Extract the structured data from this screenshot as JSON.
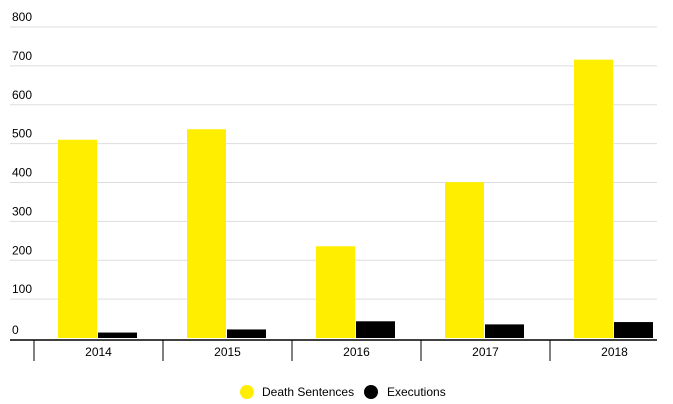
{
  "chart_data": {
    "type": "bar",
    "categories": [
      "2014",
      "2015",
      "2016",
      "2017",
      "2018"
    ],
    "series": [
      {
        "name": "Death Sentences",
        "values": [
          510,
          537,
          236,
          401,
          716
        ],
        "color": "#FFEE00"
      },
      {
        "name": "Executions",
        "values": [
          14,
          22,
          43,
          35,
          41
        ],
        "color": "#000000"
      }
    ],
    "ylim": [
      0,
      800
    ],
    "yticks": [
      "0",
      "100",
      "200",
      "300",
      "400",
      "500",
      "600",
      "700",
      "800"
    ],
    "grid": true,
    "legend_position": "bottom-center",
    "colors": {
      "gridline": "#DDDDDD",
      "axis": "#000000",
      "text": "#000000"
    }
  }
}
